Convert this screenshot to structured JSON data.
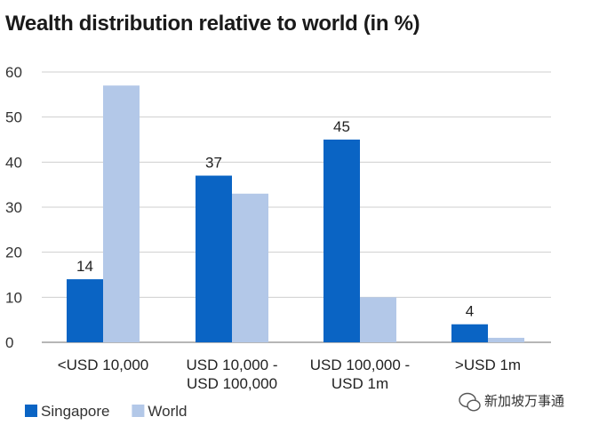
{
  "chart_data": {
    "type": "bar",
    "title": "Wealth distribution relative to world (in %)",
    "xlabel": "",
    "ylabel": "",
    "ylim": [
      0,
      60
    ],
    "yticks": [
      0,
      10,
      20,
      30,
      40,
      50,
      60
    ],
    "grid": true,
    "legend_position": "bottom-left",
    "categories": [
      [
        "<USD 10,000"
      ],
      [
        "USD 10,000 -",
        "USD 100,000"
      ],
      [
        "USD 100,000 -",
        "USD 1m"
      ],
      [
        ">USD 1m"
      ]
    ],
    "series": [
      {
        "name": "Singapore",
        "color": "#0a64c4",
        "values": [
          14,
          37,
          45,
          4
        ],
        "labels": [
          "14",
          "37",
          "45",
          "4"
        ]
      },
      {
        "name": "World",
        "color": "#b3c8e8",
        "values": [
          57,
          33,
          10,
          1
        ]
      }
    ]
  },
  "watermark": {
    "text": "新加坡万事通",
    "icon": "wechat-icon"
  }
}
